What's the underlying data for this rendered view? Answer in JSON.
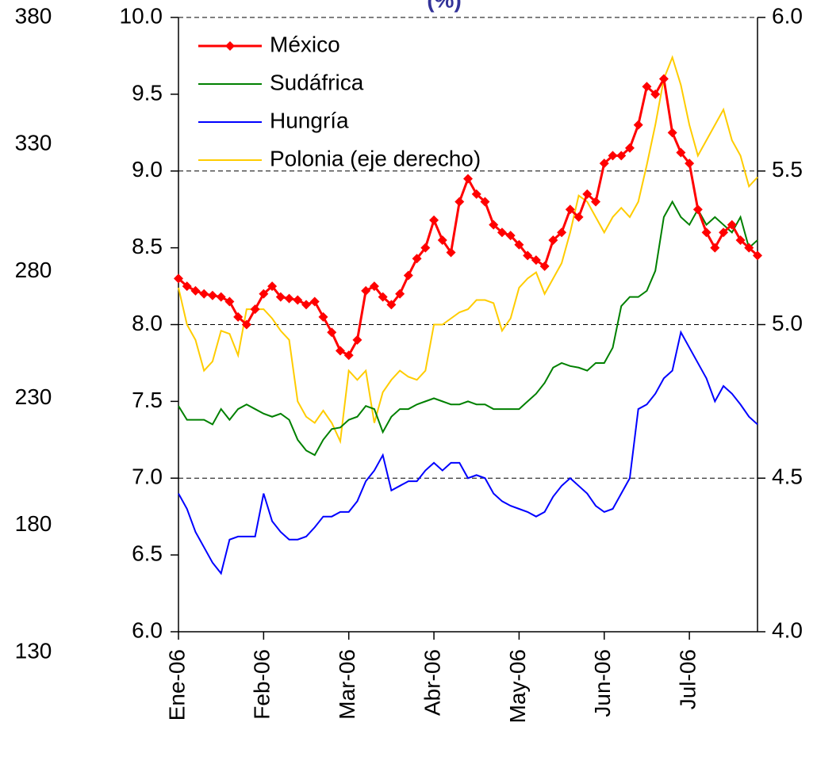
{
  "chart_data": {
    "type": "line",
    "title": "(%)",
    "categories": [
      "Ene-06",
      null,
      null,
      null,
      null,
      null,
      null,
      null,
      null,
      null,
      "Feb-06",
      null,
      null,
      null,
      null,
      null,
      null,
      null,
      null,
      null,
      "Mar-06",
      null,
      null,
      null,
      null,
      null,
      null,
      null,
      null,
      null,
      "Abr-06",
      null,
      null,
      null,
      null,
      null,
      null,
      null,
      null,
      null,
      "May-06",
      null,
      null,
      null,
      null,
      null,
      null,
      null,
      null,
      null,
      "Jun-06",
      null,
      null,
      null,
      null,
      null,
      null,
      null,
      null,
      null,
      "Jul-06",
      null,
      null,
      null,
      null,
      null,
      null,
      null,
      null
    ],
    "series": [
      {
        "name": "México",
        "color": "#ff0000",
        "marker": "diamond",
        "values": [
          8.3,
          8.25,
          8.22,
          8.2,
          8.19,
          8.18,
          8.15,
          8.05,
          8.0,
          8.1,
          8.2,
          8.25,
          8.18,
          8.17,
          8.16,
          8.13,
          8.15,
          8.05,
          7.95,
          7.83,
          7.8,
          7.9,
          8.22,
          8.25,
          8.18,
          8.13,
          8.2,
          8.32,
          8.43,
          8.5,
          8.68,
          8.55,
          8.47,
          8.8,
          8.95,
          8.85,
          8.8,
          8.65,
          8.6,
          8.58,
          8.52,
          8.45,
          8.42,
          8.38,
          8.55,
          8.6,
          8.75,
          8.7,
          8.85,
          8.8,
          9.05,
          9.1,
          9.1,
          9.15,
          9.3,
          9.55,
          9.5,
          9.6,
          9.25,
          9.12,
          9.05,
          8.75,
          8.6,
          8.5,
          8.6,
          8.65,
          8.55,
          8.5,
          8.45
        ]
      },
      {
        "name": "Sudáfrica",
        "color": "#008000",
        "values": [
          7.47,
          7.38,
          7.38,
          7.38,
          7.35,
          7.45,
          7.38,
          7.45,
          7.48,
          7.45,
          7.42,
          7.4,
          7.42,
          7.38,
          7.25,
          7.18,
          7.15,
          7.25,
          7.32,
          7.33,
          7.38,
          7.4,
          7.47,
          7.45,
          7.3,
          7.4,
          7.45,
          7.45,
          7.48,
          7.5,
          7.52,
          7.5,
          7.48,
          7.48,
          7.5,
          7.48,
          7.48,
          7.45,
          7.45,
          7.45,
          7.45,
          7.5,
          7.55,
          7.62,
          7.72,
          7.75,
          7.73,
          7.72,
          7.7,
          7.75,
          7.75,
          7.85,
          8.12,
          8.18,
          8.18,
          8.22,
          8.35,
          8.7,
          8.8,
          8.7,
          8.65,
          8.75,
          8.65,
          8.7,
          8.65,
          8.6,
          8.7,
          8.5,
          8.55
        ]
      },
      {
        "name": "Hungría",
        "color": "#0000ff",
        "values": [
          6.9,
          6.8,
          6.65,
          6.55,
          6.45,
          6.38,
          6.6,
          6.62,
          6.62,
          6.62,
          6.9,
          6.72,
          6.65,
          6.6,
          6.6,
          6.62,
          6.68,
          6.75,
          6.75,
          6.78,
          6.78,
          6.85,
          6.98,
          7.05,
          7.15,
          6.92,
          6.95,
          6.98,
          6.98,
          7.05,
          7.1,
          7.05,
          7.1,
          7.1,
          7.0,
          7.02,
          7.0,
          6.9,
          6.85,
          6.82,
          6.8,
          6.78,
          6.75,
          6.78,
          6.88,
          6.95,
          7.0,
          6.95,
          6.9,
          6.82,
          6.78,
          6.8,
          6.9,
          7.0,
          7.45,
          7.48,
          7.55,
          7.65,
          7.7,
          7.95,
          7.85,
          7.75,
          7.65,
          7.5,
          7.6,
          7.55,
          7.48,
          7.4,
          7.35
        ]
      },
      {
        "name": "Polonia (eje derecho)",
        "color": "#ffcc00",
        "axis": "y2",
        "values": [
          5.12,
          5.0,
          4.95,
          4.85,
          4.88,
          4.98,
          4.97,
          4.9,
          5.05,
          5.05,
          5.05,
          5.02,
          4.98,
          4.95,
          4.75,
          4.7,
          4.68,
          4.72,
          4.68,
          4.62,
          4.85,
          4.82,
          4.85,
          4.68,
          4.78,
          4.82,
          4.85,
          4.83,
          4.82,
          4.85,
          5.0,
          5.0,
          5.02,
          5.04,
          5.05,
          5.08,
          5.08,
          5.07,
          4.98,
          5.02,
          5.12,
          5.15,
          5.17,
          5.1,
          5.15,
          5.2,
          5.3,
          5.42,
          5.4,
          5.35,
          5.3,
          5.35,
          5.38,
          5.35,
          5.4,
          5.52,
          5.65,
          5.8,
          5.87,
          5.78,
          5.65,
          5.55,
          5.6,
          5.65,
          5.7,
          5.6,
          5.55,
          5.45,
          5.48
        ]
      }
    ],
    "ylim": [
      6,
      10
    ],
    "yticks": [
      {
        "value": 6,
        "label": "6.0"
      },
      6.5,
      {
        "value": 7,
        "label": "7.0"
      },
      7.5,
      {
        "value": 8,
        "label": "8.0"
      },
      8.5,
      {
        "value": 9,
        "label": "9.0"
      },
      9.5,
      {
        "value": 10,
        "label": "10.0"
      }
    ],
    "y2lim": [
      4,
      6
    ],
    "y2ticks": [
      {
        "value": 4,
        "label": "4.0"
      },
      4.5,
      {
        "value": 5,
        "label": "5.0"
      },
      5.5,
      {
        "value": 6,
        "label": "6.0"
      }
    ],
    "y3lim": [
      130,
      380
    ],
    "y3ticks": [
      130,
      180,
      230,
      280,
      330,
      380
    ],
    "grid": true,
    "legend": "upper left"
  }
}
